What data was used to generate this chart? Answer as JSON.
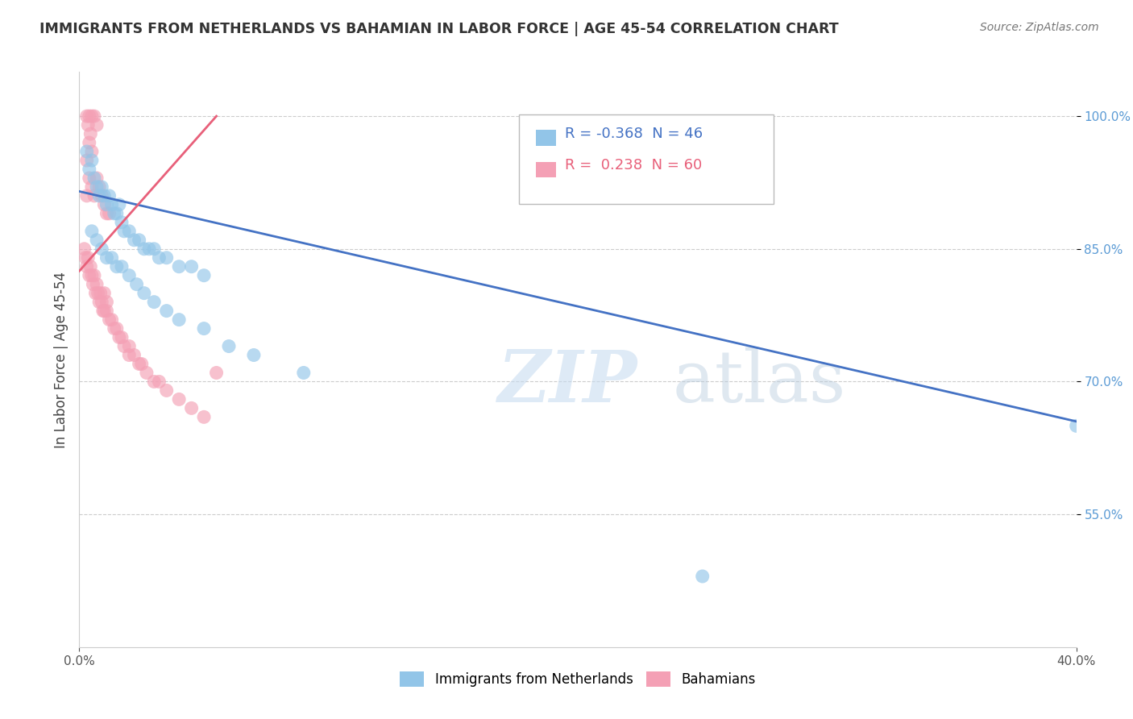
{
  "title": "IMMIGRANTS FROM NETHERLANDS VS BAHAMIAN IN LABOR FORCE | AGE 45-54 CORRELATION CHART",
  "source": "Source: ZipAtlas.com",
  "ylabel": "In Labor Force | Age 45-54",
  "xlim": [
    0.0,
    40.0
  ],
  "ylim": [
    40.0,
    105.0
  ],
  "xtick_positions": [
    0.0,
    40.0
  ],
  "xtick_labels": [
    "0.0%",
    "40.0%"
  ],
  "ytick_positions": [
    55.0,
    70.0,
    85.0,
    100.0
  ],
  "ytick_labels": [
    "55.0%",
    "70.0%",
    "85.0%",
    "100.0%"
  ],
  "blue_color": "#92C5E8",
  "pink_color": "#F4A0B5",
  "blue_line_color": "#4472C4",
  "pink_line_color": "#E8607A",
  "legend_R1": "-0.368",
  "legend_N1": "46",
  "legend_R2": "0.238",
  "legend_N2": "60",
  "legend_label1": "Immigrants from Netherlands",
  "legend_label2": "Bahamians",
  "watermark_zip": "ZIP",
  "watermark_atlas": "atlas",
  "blue_scatter_x": [
    0.3,
    0.4,
    0.5,
    0.6,
    0.7,
    0.8,
    0.9,
    1.0,
    1.1,
    1.2,
    1.3,
    1.4,
    1.5,
    1.6,
    1.7,
    1.8,
    2.0,
    2.2,
    2.4,
    2.6,
    2.8,
    3.0,
    3.2,
    3.5,
    4.0,
    4.5,
    5.0,
    0.5,
    0.7,
    0.9,
    1.1,
    1.3,
    1.5,
    1.7,
    2.0,
    2.3,
    2.6,
    3.0,
    3.5,
    4.0,
    5.0,
    6.0,
    7.0,
    9.0,
    25.0,
    40.0
  ],
  "blue_scatter_y": [
    96.0,
    94.0,
    95.0,
    93.0,
    92.0,
    91.0,
    92.0,
    91.0,
    90.0,
    91.0,
    90.0,
    89.0,
    89.0,
    90.0,
    88.0,
    87.0,
    87.0,
    86.0,
    86.0,
    85.0,
    85.0,
    85.0,
    84.0,
    84.0,
    83.0,
    83.0,
    82.0,
    87.0,
    86.0,
    85.0,
    84.0,
    84.0,
    83.0,
    83.0,
    82.0,
    81.0,
    80.0,
    79.0,
    78.0,
    77.0,
    76.0,
    74.0,
    73.0,
    71.0,
    48.0,
    65.0
  ],
  "pink_scatter_x": [
    0.2,
    0.25,
    0.3,
    0.35,
    0.4,
    0.45,
    0.5,
    0.55,
    0.6,
    0.65,
    0.7,
    0.75,
    0.8,
    0.85,
    0.9,
    0.95,
    1.0,
    1.0,
    1.1,
    1.1,
    1.2,
    1.3,
    1.4,
    1.5,
    1.6,
    1.7,
    1.8,
    2.0,
    2.0,
    2.2,
    2.4,
    2.5,
    2.7,
    3.0,
    3.2,
    3.5,
    4.0,
    4.5,
    5.0,
    0.3,
    0.4,
    0.5,
    0.6,
    0.7,
    0.8,
    0.9,
    1.0,
    1.1,
    1.2,
    0.3,
    0.4,
    0.5,
    0.35,
    0.45,
    0.3,
    0.4,
    0.5,
    0.6,
    0.7,
    5.5
  ],
  "pink_scatter_y": [
    85.0,
    84.0,
    83.0,
    84.0,
    82.0,
    83.0,
    82.0,
    81.0,
    82.0,
    80.0,
    81.0,
    80.0,
    79.0,
    80.0,
    79.0,
    78.0,
    78.0,
    80.0,
    78.0,
    79.0,
    77.0,
    77.0,
    76.0,
    76.0,
    75.0,
    75.0,
    74.0,
    73.0,
    74.0,
    73.0,
    72.0,
    72.0,
    71.0,
    70.0,
    70.0,
    69.0,
    68.0,
    67.0,
    66.0,
    91.0,
    93.0,
    92.0,
    91.0,
    93.0,
    92.0,
    91.0,
    90.0,
    89.0,
    89.0,
    95.0,
    97.0,
    96.0,
    99.0,
    98.0,
    100.0,
    100.0,
    100.0,
    100.0,
    99.0,
    71.0
  ],
  "blue_trend_x": [
    0.0,
    40.0
  ],
  "blue_trend_y": [
    91.5,
    65.5
  ],
  "pink_trend_x": [
    0.0,
    5.5
  ],
  "pink_trend_y": [
    82.5,
    100.0
  ],
  "background_color": "#FFFFFF",
  "grid_color": "#CCCCCC"
}
